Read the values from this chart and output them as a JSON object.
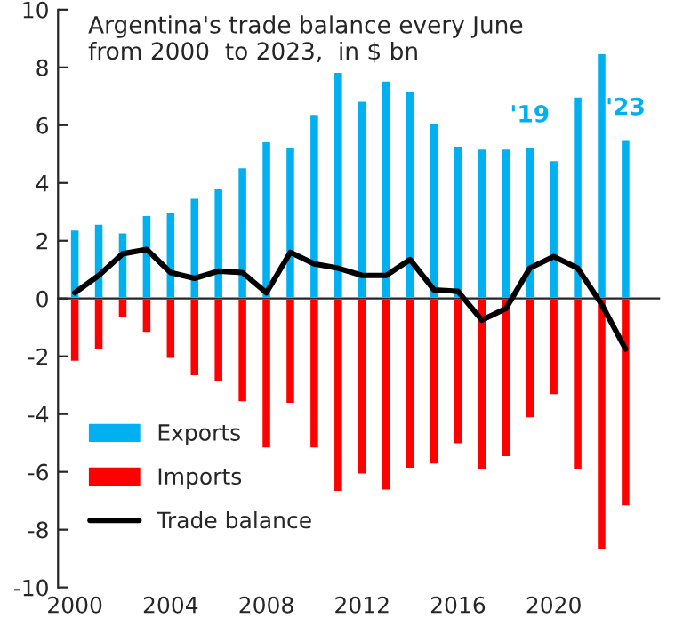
{
  "chart_data": {
    "type": "bar",
    "title": "Argentina's trade balance every June\nfrom 2000  to 2023,  in $ bn",
    "x": [
      2000,
      2001,
      2002,
      2003,
      2004,
      2005,
      2006,
      2007,
      2008,
      2009,
      2010,
      2011,
      2012,
      2013,
      2014,
      2015,
      2016,
      2017,
      2018,
      2019,
      2020,
      2021,
      2022,
      2023
    ],
    "series": [
      {
        "name": "Exports",
        "color": "#00b0f0",
        "values": [
          2.4,
          2.6,
          2.3,
          2.9,
          3.0,
          3.5,
          3.85,
          4.55,
          5.45,
          5.25,
          6.4,
          7.85,
          6.85,
          7.55,
          7.2,
          6.1,
          5.3,
          5.2,
          5.2,
          5.25,
          4.8,
          7.0,
          8.5,
          5.5
        ]
      },
      {
        "name": "Imports",
        "color": "#ff0000",
        "values": [
          -2.2,
          -1.8,
          -0.7,
          -1.2,
          -2.1,
          -2.7,
          -2.9,
          -3.6,
          -5.2,
          -3.65,
          -5.2,
          -6.7,
          -6.1,
          -6.65,
          -5.9,
          -5.75,
          -5.05,
          -5.95,
          -5.5,
          -4.15,
          -3.35,
          -5.95,
          -8.7,
          -7.2
        ]
      },
      {
        "name": "Trade balance",
        "type": "line",
        "color": "#000000",
        "values": [
          0.2,
          0.8,
          1.55,
          1.7,
          0.9,
          0.7,
          0.95,
          0.9,
          0.2,
          1.6,
          1.2,
          1.05,
          0.8,
          0.8,
          1.35,
          0.3,
          0.25,
          -0.75,
          -0.35,
          1.05,
          1.45,
          1.05,
          -0.2,
          -1.75
        ]
      }
    ],
    "annotations": [
      {
        "text": "'19",
        "x": 2019,
        "y": 5.25
      },
      {
        "text": "'23",
        "x": 2023,
        "y": 5.5
      }
    ],
    "xlim": [
      1999.3,
      2024.4
    ],
    "xticks": [
      2000,
      2004,
      2008,
      2012,
      2016,
      2020
    ],
    "ylim": [
      -10,
      10
    ],
    "yticks": [
      -10,
      -8,
      -6,
      -4,
      -2,
      0,
      2,
      4,
      6,
      8,
      10
    ],
    "legend": "bottom left",
    "stacked": true
  }
}
